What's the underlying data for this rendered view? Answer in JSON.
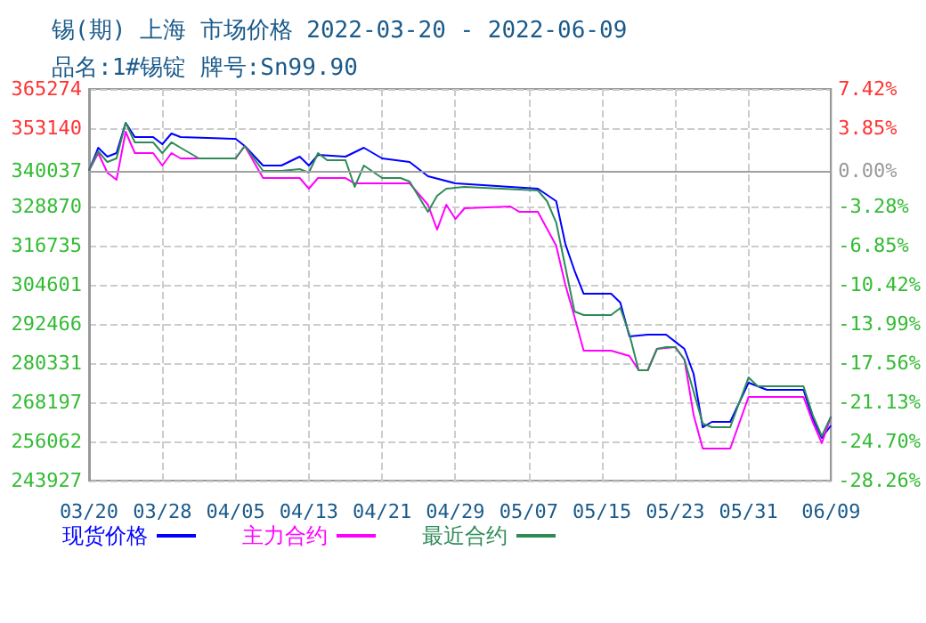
{
  "chart_data": {
    "type": "line",
    "title": "锡(期) 上海 市场价格 2022-03-20 - 2022-06-09",
    "subtitle": "品名:1#锡锭 牌号:Sn99.90",
    "ylim": [
      243927,
      365274
    ],
    "yticks": [
      243927,
      256062,
      268197,
      280331,
      292466,
      304601,
      316735,
      328870,
      340037,
      353140,
      365274
    ],
    "y2lim": [
      -28.26,
      7.42
    ],
    "y2ticks": [
      {
        "value": -28.26,
        "label": "-28.26%"
      },
      {
        "value": -24.7,
        "label": "-24.70%"
      },
      {
        "value": -21.13,
        "label": "-21.13%"
      },
      {
        "value": -17.56,
        "label": "-17.56%"
      },
      {
        "value": -13.99,
        "label": "-13.99%"
      },
      {
        "value": -10.42,
        "label": "-10.42%"
      },
      {
        "value": -6.85,
        "label": "-6.85%"
      },
      {
        "value": -3.28,
        "label": "-3.28%"
      },
      {
        "value": 0,
        "label": "0.00%"
      },
      {
        "value": 3.85,
        "label": "3.85%"
      },
      {
        "value": 7.42,
        "label": "7.42%"
      }
    ],
    "xlim": [
      "2022-03-20",
      "2022-06-09"
    ],
    "xticks": [
      {
        "value": "2022-03-20",
        "label": "03/20"
      },
      {
        "value": "2022-03-28",
        "label": "03/28"
      },
      {
        "value": "2022-04-05",
        "label": "04/05"
      },
      {
        "value": "2022-04-13",
        "label": "04/13"
      },
      {
        "value": "2022-04-21",
        "label": "04/21"
      },
      {
        "value": "2022-04-29",
        "label": "04/29"
      },
      {
        "value": "2022-05-07",
        "label": "05/07"
      },
      {
        "value": "2022-05-15",
        "label": "05/15"
      },
      {
        "value": "2022-05-23",
        "label": "05/23"
      },
      {
        "value": "2022-05-31",
        "label": "05/31"
      },
      {
        "value": "2022-06-09",
        "label": "06/09"
      }
    ],
    "grid": true,
    "legend": "bottom",
    "marker": "none",
    "line_style": "solid",
    "ref_lines": [
      {
        "axis": "y2",
        "value": 0,
        "color": "#a0a0a0"
      }
    ],
    "series": [
      {
        "name": "现货价格",
        "color": "#0000ff",
        "x": [
          "2022-03-20",
          "2022-03-21",
          "2022-03-22",
          "2022-03-23",
          "2022-03-24",
          "2022-03-25",
          "2022-03-27",
          "2022-03-28",
          "2022-03-29",
          "2022-03-30",
          "2022-04-05",
          "2022-04-06",
          "2022-04-08",
          "2022-04-10",
          "2022-04-12",
          "2022-04-13",
          "2022-04-14",
          "2022-04-17",
          "2022-04-19",
          "2022-04-21",
          "2022-04-24",
          "2022-04-26",
          "2022-04-29",
          "2022-05-08",
          "2022-05-10",
          "2022-05-11",
          "2022-05-12",
          "2022-05-13",
          "2022-05-16",
          "2022-05-17",
          "2022-05-18",
          "2022-05-20",
          "2022-05-22",
          "2022-05-24",
          "2022-05-25",
          "2022-05-26",
          "2022-05-27",
          "2022-05-29",
          "2022-05-31",
          "2022-06-02",
          "2022-06-06",
          "2022-06-07",
          "2022-06-08",
          "2022-06-09"
        ],
        "values": [
          340037,
          347070,
          344310,
          345420,
          354790,
          350380,
          350380,
          348170,
          351480,
          350380,
          349830,
          347620,
          341550,
          341550,
          344310,
          341550,
          344860,
          344310,
          347070,
          343760,
          342650,
          338240,
          336030,
          334380,
          330520,
          317270,
          309000,
          301840,
          301840,
          299080,
          288600,
          289150,
          289150,
          284740,
          277020,
          260470,
          262130,
          262130,
          274260,
          272050,
          272050,
          263230,
          257170,
          261030
        ]
      },
      {
        "name": "主力合约",
        "color": "#ff00ff",
        "x": [
          "2022-03-20",
          "2022-03-21",
          "2022-03-22",
          "2022-03-23",
          "2022-03-24",
          "2022-03-25",
          "2022-03-27",
          "2022-03-28",
          "2022-03-29",
          "2022-03-30",
          "2022-04-05",
          "2022-04-06",
          "2022-04-08",
          "2022-04-12",
          "2022-04-13",
          "2022-04-14",
          "2022-04-17",
          "2022-04-18",
          "2022-04-24",
          "2022-04-26",
          "2022-04-27",
          "2022-04-28",
          "2022-04-29",
          "2022-04-30",
          "2022-05-05",
          "2022-05-06",
          "2022-05-08",
          "2022-05-10",
          "2022-05-11",
          "2022-05-12",
          "2022-05-13",
          "2022-05-16",
          "2022-05-18",
          "2022-05-19",
          "2022-05-20",
          "2022-05-21",
          "2022-05-23",
          "2022-05-24",
          "2022-05-25",
          "2022-05-26",
          "2022-05-29",
          "2022-05-31",
          "2022-06-06",
          "2022-06-07",
          "2022-06-08",
          "2022-06-09"
        ],
        "values": [
          340037,
          345420,
          339350,
          337140,
          352040,
          345420,
          345420,
          341550,
          345420,
          343760,
          343760,
          347620,
          337690,
          337690,
          334380,
          337690,
          337690,
          336030,
          336030,
          329420,
          321700,
          329420,
          325010,
          328320,
          328870,
          327210,
          327210,
          316730,
          304600,
          294670,
          284190,
          284190,
          282530,
          278120,
          278120,
          284740,
          285290,
          281430,
          264330,
          253850,
          253850,
          269850,
          269850,
          262130,
          255520,
          263780
        ]
      },
      {
        "name": "最近合约",
        "color": "#2e8b57",
        "x": [
          "2022-03-20",
          "2022-03-21",
          "2022-03-22",
          "2022-03-23",
          "2022-03-24",
          "2022-03-25",
          "2022-03-27",
          "2022-03-28",
          "2022-03-29",
          "2022-03-30",
          "2022-04-01",
          "2022-04-05",
          "2022-04-06",
          "2022-04-08",
          "2022-04-10",
          "2022-04-12",
          "2022-04-13",
          "2022-04-14",
          "2022-04-15",
          "2022-04-17",
          "2022-04-18",
          "2022-04-19",
          "2022-04-21",
          "2022-04-23",
          "2022-04-24",
          "2022-04-26",
          "2022-04-27",
          "2022-04-28",
          "2022-04-30",
          "2022-05-08",
          "2022-05-09",
          "2022-05-10",
          "2022-05-11",
          "2022-05-12",
          "2022-05-13",
          "2022-05-16",
          "2022-05-17",
          "2022-05-18",
          "2022-05-19",
          "2022-05-20",
          "2022-05-21",
          "2022-05-22",
          "2022-05-23",
          "2022-05-24",
          "2022-05-25",
          "2022-05-26",
          "2022-05-27",
          "2022-05-29",
          "2022-05-30",
          "2022-05-31",
          "2022-06-01",
          "2022-06-06",
          "2022-06-07",
          "2022-06-08",
          "2022-06-09"
        ],
        "values": [
          340037,
          345970,
          342650,
          343760,
          354790,
          348730,
          348730,
          345420,
          348730,
          347070,
          343760,
          343760,
          347620,
          339900,
          339900,
          340450,
          339350,
          345420,
          343210,
          343210,
          334940,
          341550,
          337690,
          337690,
          336580,
          327210,
          332180,
          334380,
          334940,
          333830,
          330520,
          323900,
          310110,
          296320,
          295220,
          295220,
          297420,
          289150,
          278120,
          278120,
          284740,
          285290,
          285290,
          281430,
          271500,
          261570,
          260470,
          260470,
          268190,
          275910,
          273150,
          273150,
          264330,
          257710,
          263780
        ]
      }
    ]
  }
}
